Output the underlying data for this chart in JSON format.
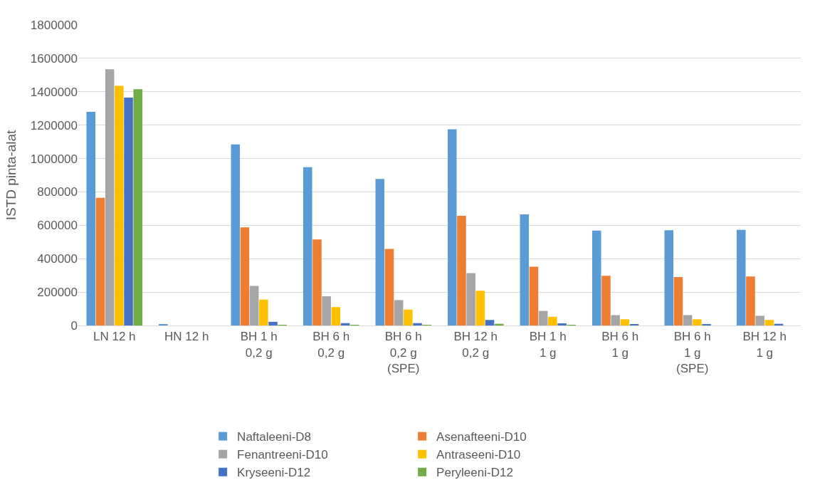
{
  "chart_data": {
    "type": "bar",
    "ylabel": "ISTD pinta-alat",
    "categories": [
      "LN 12 h",
      "HN 12 h",
      "BH 1 h\n0,2 g",
      "BH 6 h\n0,2 g",
      "BH 6 h\n0,2 g\n(SPE)",
      "BH 12 h\n0,2 g",
      "BH 1 h\n1 g",
      "BH 6 h\n1 g",
      "BH 6 h\n1 g\n(SPE)",
      "BH 12 h\n1 g"
    ],
    "series": [
      {
        "name": "Naftaleeni-D8",
        "color": "#5b9bd5",
        "values": [
          1280000,
          5000,
          1085000,
          948000,
          878000,
          1175000,
          665000,
          568000,
          570000,
          573000
        ]
      },
      {
        "name": "Asenafteeni-D10",
        "color": "#ed7d31",
        "values": [
          765000,
          null,
          588000,
          515000,
          458000,
          657000,
          352000,
          297000,
          290000,
          293000
        ]
      },
      {
        "name": "Fenantreeni-D10",
        "color": "#a5a5a5",
        "values": [
          1535000,
          null,
          237000,
          175000,
          152000,
          313000,
          87000,
          62000,
          62000,
          58000
        ]
      },
      {
        "name": "Antraseeni-D10",
        "color": "#ffc000",
        "values": [
          1435000,
          null,
          155000,
          110000,
          95000,
          208000,
          52000,
          37000,
          37000,
          33000
        ]
      },
      {
        "name": "Kryseeni-D12",
        "color": "#4472c4",
        "values": [
          1365000,
          null,
          22000,
          14000,
          14000,
          33000,
          13000,
          8000,
          6000,
          10000
        ]
      },
      {
        "name": "Peryleeni-D12",
        "color": "#70ad47",
        "values": [
          1415000,
          null,
          4000,
          2000,
          2000,
          10000,
          2000,
          null,
          null,
          null
        ]
      }
    ],
    "ylim": [
      0,
      1800000
    ],
    "yticks": [
      0,
      200000,
      400000,
      600000,
      800000,
      1000000,
      1200000,
      1400000,
      1600000,
      1800000
    ],
    "grid": "y",
    "legend": "bottom"
  }
}
